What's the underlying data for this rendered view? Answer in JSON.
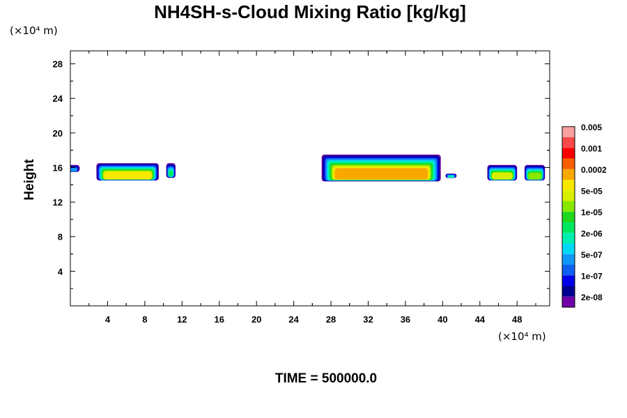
{
  "chart_data": {
    "type": "heatmap",
    "title": "NH4SH-s-Cloud Mixing Ratio [kg/kg]",
    "x_unit": "(×10⁴ m)",
    "y_unit": "(×10⁴ m)",
    "ylabel": "Height",
    "xlim": [
      0,
      51.5
    ],
    "ylim": [
      0,
      29.5
    ],
    "x_ticks": [
      "4",
      "8",
      "12",
      "16",
      "20",
      "24",
      "28",
      "32",
      "36",
      "40",
      "44",
      "48"
    ],
    "y_ticks": [
      "4",
      "8",
      "12",
      "16",
      "20",
      "24",
      "28"
    ],
    "colorbar": {
      "colors": [
        "#7000a8",
        "#000090",
        "#0000e8",
        "#1060f0",
        "#1098f8",
        "#00d8f8",
        "#00f0b0",
        "#00e860",
        "#20d820",
        "#88e800",
        "#d8f000",
        "#f8e800",
        "#f8a800",
        "#f86000",
        "#f80000",
        "#f84848",
        "#f8a0a0"
      ],
      "labels": [
        "2e-08",
        "1e-07",
        "5e-07",
        "2e-06",
        "1e-05",
        "5e-05",
        "0.0002",
        "0.001",
        "0.005"
      ]
    },
    "cloud_regions": [
      {
        "x": [
          -0.3,
          1.0
        ],
        "y_top": 16.3,
        "y_base": 15.5,
        "level": 4
      },
      {
        "x": [
          2.8,
          9.5
        ],
        "y_top": 16.5,
        "y_base": 14.5,
        "level": 11
      },
      {
        "x": [
          10.3,
          11.3
        ],
        "y_top": 16.5,
        "y_base": 14.8,
        "level": 7
      },
      {
        "x": [
          27.0,
          39.8
        ],
        "y_top": 17.5,
        "y_base": 14.4,
        "level": 12
      },
      {
        "x": [
          40.3,
          41.5
        ],
        "y_top": 15.3,
        "y_base": 14.8,
        "level": 6
      },
      {
        "x": [
          44.8,
          48.0
        ],
        "y_top": 16.3,
        "y_base": 14.5,
        "level": 10
      },
      {
        "x": [
          48.8,
          51.0
        ],
        "y_top": 16.3,
        "y_base": 14.5,
        "level": 9
      }
    ]
  },
  "footer": {
    "time_text": "TIME = 500000.0"
  }
}
